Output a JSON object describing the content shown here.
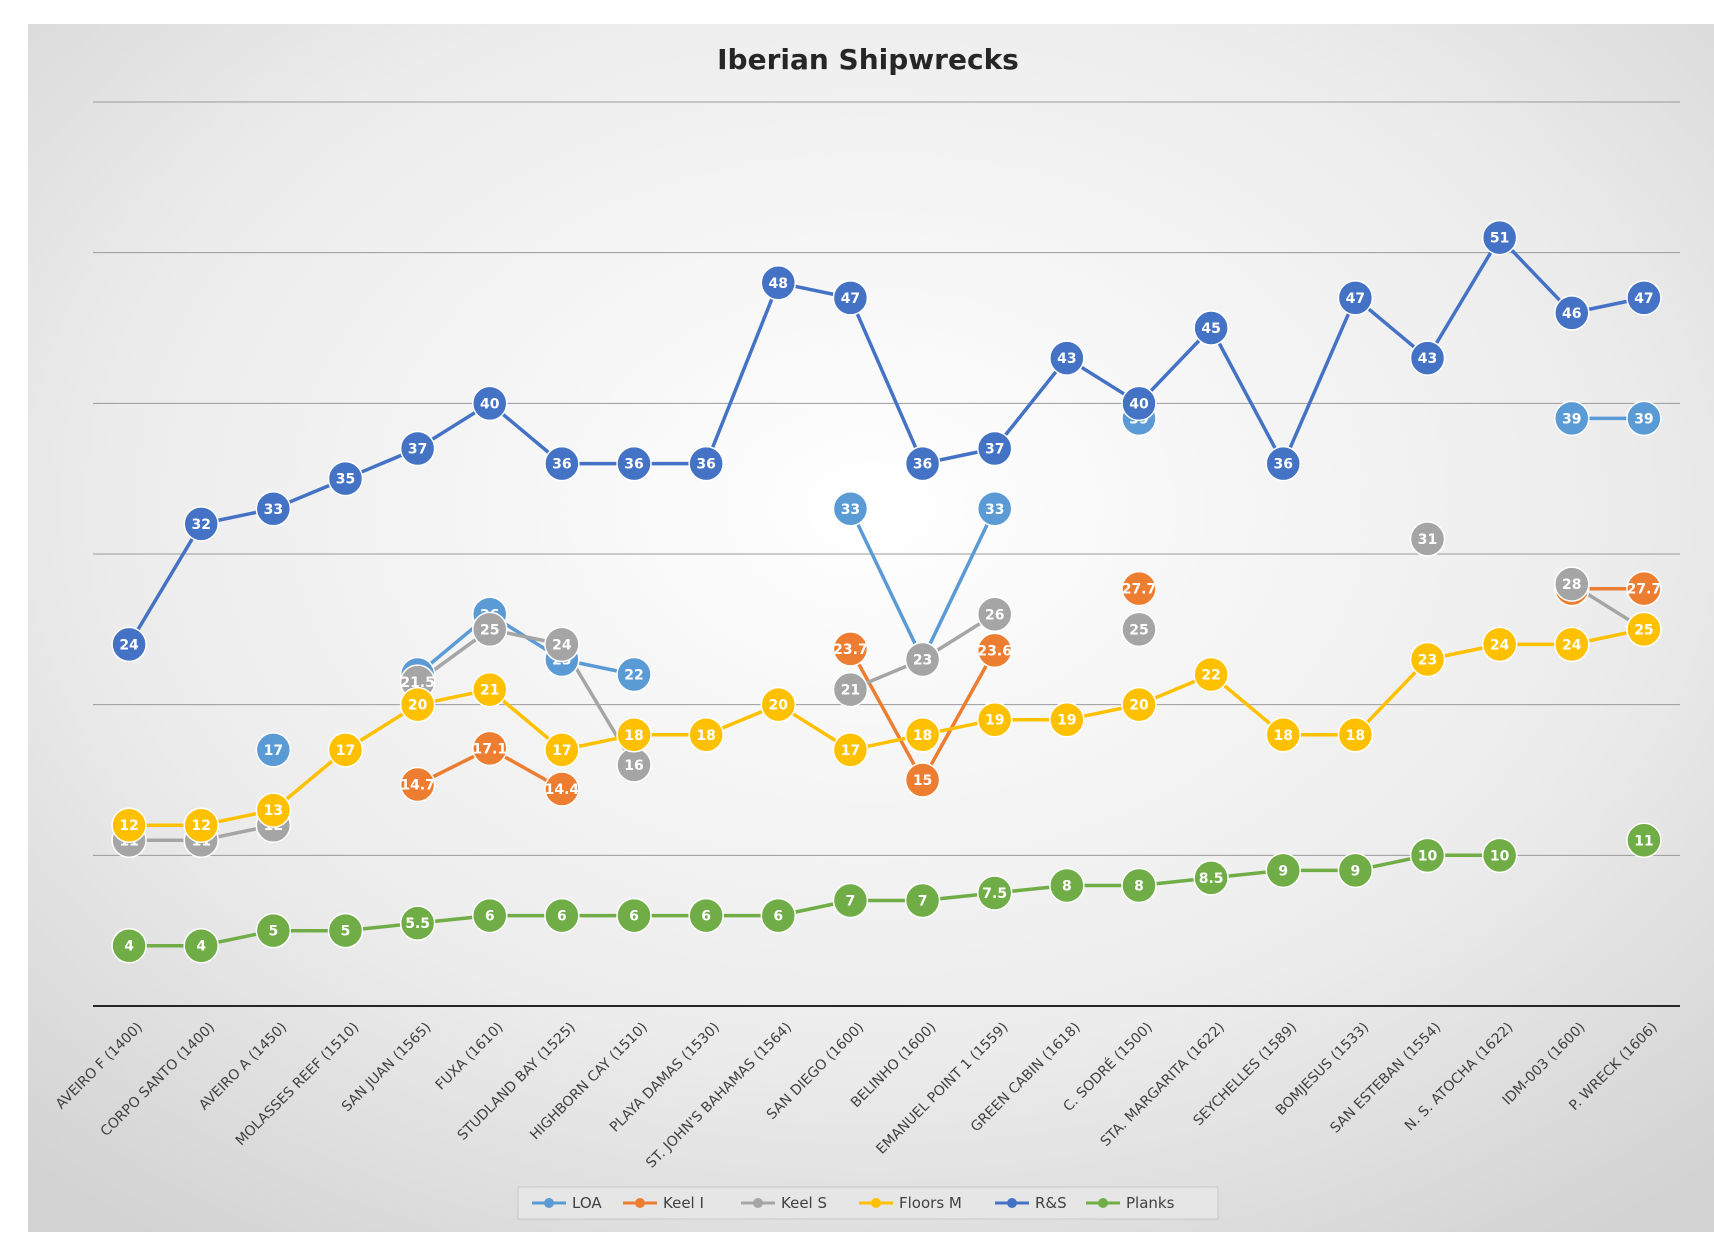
{
  "chart_data": {
    "type": "line",
    "title": "Iberian Shipwrecks",
    "xlabel": "",
    "ylabel": "",
    "ylim": [
      0,
      60
    ],
    "grid": true,
    "legend_position": "bottom",
    "categories": [
      "AVEIRO F (1400)",
      "CORPO SANTO (1400)",
      "AVEIRO A (1450)",
      "MOLASSES REEF (1510)",
      "SAN JUAN (1565)",
      "FUXA (1610)",
      "STUDLAND BAY (1525)",
      "HIGHBORN CAY (1510)",
      "PLAYA DAMAS (1530)",
      "ST. JOHN'S BAHAMAS (1564)",
      "SAN DIEGO (1600)",
      "BELINHO (1600)",
      "EMANUEL POINT 1 (1559)",
      "GREEN CABIN (1618)",
      "C. SODRÉ (1500)",
      "STA. MARGARITA (1622)",
      "SEYCHELLES (1589)",
      "BOMJESUS (1533)",
      "SAN ESTEBAN (1554)",
      "N. S. ATOCHA (1622)",
      "IDM-003 (1600)",
      "P. WRECK (1606)"
    ],
    "series": [
      {
        "name": "LOA",
        "color": "#5B9BD5",
        "values": [
          null,
          null,
          17,
          null,
          22,
          26,
          23,
          22,
          null,
          null,
          33,
          23,
          33,
          null,
          39,
          null,
          null,
          null,
          null,
          null,
          39,
          39
        ]
      },
      {
        "name": "Keel I",
        "color": "#ED7D31",
        "values": [
          null,
          null,
          null,
          null,
          14.7,
          17.1,
          14.4,
          null,
          null,
          null,
          23.7,
          15,
          23.6,
          null,
          27.7,
          null,
          null,
          null,
          null,
          null,
          27.7,
          27.7
        ]
      },
      {
        "name": "Keel S",
        "color": "#A5A5A5",
        "values": [
          11,
          11,
          12,
          null,
          21.5,
          25,
          24,
          16,
          null,
          null,
          21,
          23,
          26,
          null,
          25,
          null,
          null,
          null,
          31,
          null,
          28,
          25
        ]
      },
      {
        "name": "Floors M",
        "color": "#FFC000",
        "values": [
          12,
          12,
          13,
          17,
          20,
          21,
          17,
          18,
          18,
          20,
          17,
          18,
          19,
          19,
          20,
          22,
          18,
          18,
          23,
          24,
          24,
          25
        ]
      },
      {
        "name": "R&S",
        "color": "#4472C4",
        "values": [
          24,
          32,
          33,
          35,
          37,
          40,
          36,
          36,
          36,
          48,
          47,
          36,
          37,
          43,
          40,
          45,
          36,
          47,
          43,
          51,
          46,
          47
        ]
      },
      {
        "name": "Planks",
        "color": "#70AD47",
        "values": [
          4,
          4,
          5,
          5,
          5.5,
          6,
          6,
          6,
          6,
          6,
          7,
          7,
          7.5,
          8,
          8,
          8.5,
          9,
          9,
          10,
          10,
          null,
          11
        ]
      }
    ]
  }
}
